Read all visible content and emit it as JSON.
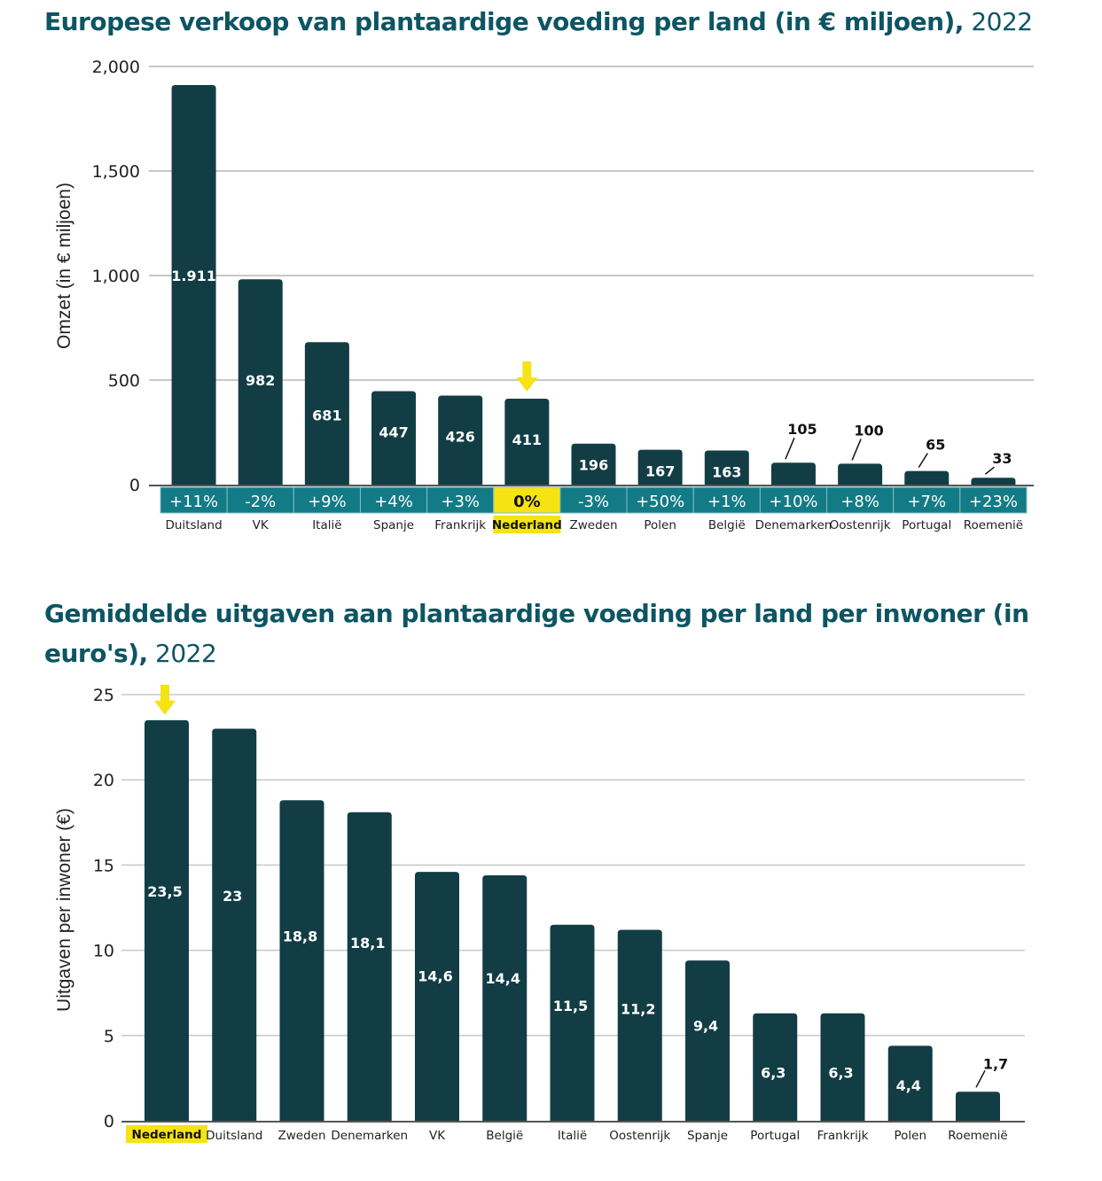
{
  "colors": {
    "bar": "#123d45",
    "title": "#0d5563",
    "pct_band": "#127b86",
    "highlight": "#f5e313",
    "grid": "#c8c8c8"
  },
  "chart_data": [
    {
      "type": "bar",
      "title": "Europese verkoop van plantaardige voeding per land (in € miljoen),",
      "title_year": "2022",
      "xlabel": "",
      "ylabel": "Omzet (in € miljoen)",
      "ylim": [
        0,
        2000
      ],
      "yticks": [
        0,
        500,
        1000,
        1500,
        2000
      ],
      "ytick_labels": [
        "0",
        "500",
        "1,000",
        "1,500",
        "2,000"
      ],
      "grid": true,
      "categories": [
        "Duitsland",
        "VK",
        "Italië",
        "Spanje",
        "Frankrijk",
        "Nederland",
        "Zweden",
        "Polen",
        "België",
        "Denemarken",
        "Oostenrijk",
        "Portugal",
        "Roemenië"
      ],
      "values": [
        1911,
        982,
        681,
        447,
        426,
        411,
        196,
        167,
        163,
        105,
        100,
        65,
        33
      ],
      "value_labels": [
        "1.911",
        "982",
        "681",
        "447",
        "426",
        "411",
        "196",
        "167",
        "163",
        "105",
        "100",
        "65",
        "33"
      ],
      "growth_labels": [
        "+11%",
        "-2%",
        "+9%",
        "+4%",
        "+3%",
        "0%",
        "-3%",
        "+50%",
        "+1%",
        "+10%",
        "+8%",
        "+7%",
        "+23%"
      ],
      "highlight": "Nederland",
      "highlight_marker": "arrow-down"
    },
    {
      "type": "bar",
      "title": "Gemiddelde uitgaven aan plantaardige voeding per land per inwoner (in euro's),",
      "title_year": "2022",
      "xlabel": "",
      "ylabel": "Uitgaven per inwoner (€)",
      "ylim": [
        0,
        25
      ],
      "yticks": [
        0,
        5,
        10,
        15,
        20,
        25
      ],
      "ytick_labels": [
        "0",
        "5",
        "10",
        "15",
        "20",
        "25"
      ],
      "grid": true,
      "categories": [
        "Nederland",
        "Duitsland",
        "Zweden",
        "Denemarken",
        "VK",
        "België",
        "Italië",
        "Oostenrijk",
        "Spanje",
        "Portugal",
        "Frankrijk",
        "Polen",
        "Roemenië"
      ],
      "values": [
        23.5,
        23,
        18.8,
        18.1,
        14.6,
        14.4,
        11.5,
        11.2,
        9.4,
        6.3,
        6.3,
        4.4,
        1.7
      ],
      "value_labels": [
        "23,5",
        "23",
        "18,8",
        "18,1",
        "14,6",
        "14,4",
        "11,5",
        "11,2",
        "9,4",
        "6,3",
        "6,3",
        "4,4",
        "1,7"
      ],
      "highlight": "Nederland",
      "highlight_marker": "arrow-down"
    }
  ]
}
